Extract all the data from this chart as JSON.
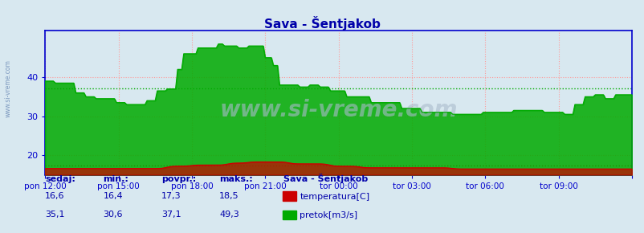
{
  "title": "Sava - Šentjakob",
  "bg_color": "#d8e8f0",
  "plot_bg_color": "#d8e8f0",
  "grid_color": "#ff9999",
  "axis_color": "#0000cc",
  "text_color": "#0000aa",
  "ylim": [
    15,
    52
  ],
  "yticks": [
    20,
    30,
    40
  ],
  "xlim": [
    0,
    288
  ],
  "xtick_positions": [
    0,
    36,
    72,
    108,
    144,
    180,
    216,
    252,
    288
  ],
  "xtick_labels": [
    "pon 12:00",
    "pon 15:00",
    "pon 18:00",
    "pon 21:00",
    "tor 00:00",
    "tor 03:00",
    "tor 06:00",
    "tor 09:00",
    ""
  ],
  "temp_avg": 17.3,
  "flow_avg": 37.1,
  "temp_color": "#cc0000",
  "flow_color": "#00aa00",
  "watermark": "www.si-vreme.com",
  "legend_title": "Sava - Šentjakob",
  "legend_items": [
    {
      "label": "temperatura[C]",
      "color": "#cc0000"
    },
    {
      "label": "pretok[m3/s]",
      "color": "#00aa00"
    }
  ],
  "stats_labels": [
    "sedaj:",
    "min.:",
    "povpr.:",
    "maks.:"
  ],
  "stats_temp": [
    "16,6",
    "16,4",
    "17,3",
    "18,5"
  ],
  "stats_flow": [
    "35,1",
    "30,6",
    "37,1",
    "49,3"
  ]
}
